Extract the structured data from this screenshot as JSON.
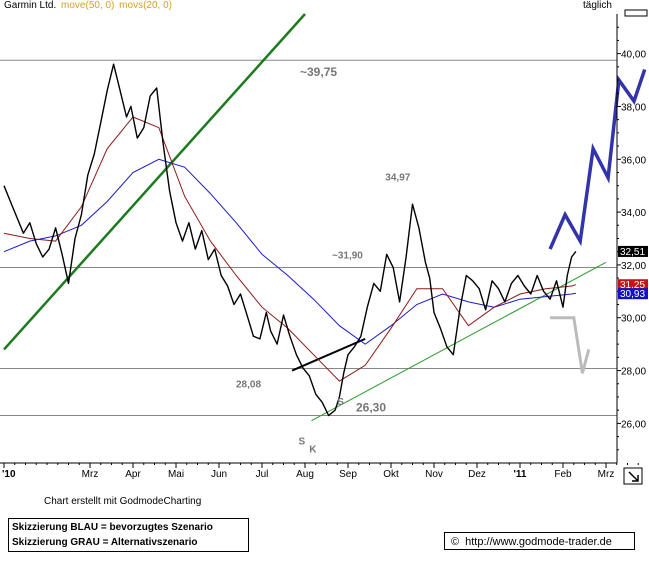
{
  "header": {
    "title": "Garmin Ltd.",
    "indicator_1": "move(50, 0)",
    "indicator_2": "movs(20, 0)",
    "timeframe": "täglich"
  },
  "footer": {
    "credit": "Chart erstellt mit GodmodeCharting",
    "legend_blue": "Skizzierung BLAU = bevorzugtes Szenario",
    "legend_grey": "Skizzierung GRAU = Alternativszenario",
    "copyright_symbol": "©",
    "url": "http://www.godmode-trader.de"
  },
  "colors": {
    "price": "#000000",
    "ma50": "#1a1acc",
    "ma20": "#8b1a1a",
    "trend_upper": "#1e7a1e",
    "trend_lower": "#2a9a2a",
    "scenario_blue": "#3333aa",
    "scenario_grey": "#bbbbbb",
    "horizontal_level": "#888888",
    "label_grey": "#777777",
    "badge_price": "#000000",
    "badge_ma20": "#cc1111",
    "badge_ma50": "#1111cc"
  },
  "chart_data": {
    "type": "line",
    "title": "Garmin Ltd.",
    "x_tick_labels": [
      "'10",
      "Mrz",
      "Apr",
      "Mai",
      "Jun",
      "Jul",
      "Aug",
      "Sep",
      "Okt",
      "Nov",
      "Dez",
      "'11",
      "Feb",
      "Mrz"
    ],
    "x_tick_months": [
      0,
      2,
      3,
      4,
      5,
      6,
      7,
      8,
      9,
      10,
      11,
      12,
      13,
      14
    ],
    "xlim": [
      0,
      14.9
    ],
    "y_ticks": [
      26,
      28,
      30,
      32,
      34,
      36,
      38,
      40
    ],
    "y_tick_labels": [
      "26,00",
      "28,00",
      "30,00",
      "32,00",
      "34,00",
      "36,00",
      "38,00",
      "40,00"
    ],
    "ylim": [
      24.5,
      41.5
    ],
    "y_axis_side": "right",
    "grid": false,
    "price_series": {
      "name": "Garmin Ltd.",
      "x": [
        0.0,
        0.15,
        0.3,
        0.45,
        0.6,
        0.75,
        0.9,
        1.05,
        1.2,
        1.35,
        1.5,
        1.65,
        1.8,
        1.95,
        2.1,
        2.25,
        2.4,
        2.55,
        2.7,
        2.85,
        2.95,
        3.1,
        3.25,
        3.4,
        3.55,
        3.7,
        3.85,
        4.0,
        4.15,
        4.3,
        4.45,
        4.6,
        4.75,
        4.9,
        5.05,
        5.2,
        5.35,
        5.5,
        5.65,
        5.8,
        5.95,
        6.1,
        6.2,
        6.35,
        6.5,
        6.65,
        6.8,
        6.95,
        7.1,
        7.25,
        7.4,
        7.55,
        7.7,
        7.8,
        7.9,
        8.0,
        8.15,
        8.3,
        8.45,
        8.6,
        8.75,
        8.9,
        9.05,
        9.2,
        9.35,
        9.5,
        9.65,
        9.8,
        9.9,
        10.0,
        10.15,
        10.3,
        10.45,
        10.6,
        10.75,
        10.9,
        11.05,
        11.2,
        11.35,
        11.5,
        11.65,
        11.8,
        11.95,
        12.1,
        12.25,
        12.4,
        12.55,
        12.7,
        12.85,
        13.0,
        13.1,
        13.2,
        13.3
      ],
      "y": [
        35.0,
        34.4,
        33.8,
        33.2,
        33.6,
        32.8,
        32.3,
        32.6,
        33.4,
        32.4,
        31.3,
        33.0,
        33.9,
        35.4,
        36.2,
        37.4,
        38.6,
        39.6,
        38.6,
        37.6,
        38.0,
        36.8,
        37.2,
        38.4,
        38.7,
        36.6,
        34.8,
        33.6,
        32.9,
        33.6,
        32.6,
        33.3,
        32.2,
        32.6,
        31.6,
        31.2,
        30.5,
        30.9,
        30.1,
        29.3,
        29.2,
        30.2,
        29.5,
        29.0,
        30.1,
        29.3,
        28.6,
        28.1,
        27.8,
        27.1,
        26.8,
        26.3,
        26.5,
        27.0,
        27.9,
        28.6,
        28.9,
        29.3,
        30.4,
        31.3,
        31.0,
        32.4,
        31.9,
        30.6,
        32.3,
        34.3,
        33.4,
        32.1,
        31.5,
        30.2,
        29.6,
        28.9,
        28.6,
        30.3,
        31.6,
        31.4,
        31.1,
        30.3,
        31.4,
        31.1,
        30.6,
        31.3,
        31.6,
        31.2,
        30.9,
        31.6,
        31.0,
        30.7,
        31.4,
        30.4,
        31.6,
        32.3,
        32.51
      ]
    },
    "ma20_series": {
      "name": "movs(20, 0)",
      "x": [
        0.0,
        0.6,
        1.2,
        1.8,
        2.4,
        3.0,
        3.6,
        4.2,
        4.8,
        5.4,
        6.0,
        6.6,
        7.2,
        7.8,
        8.4,
        9.0,
        9.6,
        10.2,
        10.8,
        11.4,
        12.0,
        12.6,
        13.2,
        13.3
      ],
      "y": [
        33.2,
        33.0,
        32.9,
        34.2,
        36.4,
        37.6,
        37.2,
        34.6,
        32.9,
        31.6,
        30.4,
        29.6,
        28.6,
        27.6,
        28.2,
        29.6,
        31.1,
        31.1,
        29.7,
        30.4,
        30.9,
        31.1,
        31.2,
        31.25
      ]
    },
    "ma50_series": {
      "name": "move(50, 0)",
      "x": [
        0.0,
        0.6,
        1.2,
        1.8,
        2.4,
        3.0,
        3.6,
        4.2,
        4.8,
        5.4,
        6.0,
        6.6,
        7.2,
        7.8,
        8.4,
        9.0,
        9.6,
        10.2,
        10.8,
        11.4,
        12.0,
        12.6,
        13.2,
        13.3
      ],
      "y": [
        32.5,
        32.9,
        33.1,
        33.5,
        34.4,
        35.5,
        36.0,
        35.7,
        34.7,
        33.6,
        32.4,
        31.6,
        30.7,
        29.7,
        29.0,
        29.7,
        30.5,
        30.9,
        30.6,
        30.4,
        30.7,
        30.8,
        30.9,
        30.93
      ]
    },
    "horizontal_levels": [
      {
        "value": 39.75,
        "label": "~39,75"
      },
      {
        "value": 31.9,
        "label": "~31,90"
      },
      {
        "value": 28.08,
        "label": "28,08"
      },
      {
        "value": 26.3,
        "label": "26,30"
      }
    ],
    "peak_label": {
      "x": 9.1,
      "y": 34.97,
      "label": "34,97"
    },
    "pattern_labels": [
      {
        "x": 6.85,
        "y": 25.2,
        "label": "S"
      },
      {
        "x": 7.1,
        "y": 24.9,
        "label": "K"
      },
      {
        "x": 7.75,
        "y": 26.7,
        "label": "S"
      }
    ],
    "neckline": {
      "x": [
        6.7,
        8.4
      ],
      "y": [
        28.0,
        29.2
      ]
    },
    "trendlines": [
      {
        "name": "upper",
        "x": [
          0.0,
          7.0
        ],
        "y": [
          28.8,
          41.5
        ]
      },
      {
        "name": "lower",
        "x": [
          7.15,
          14.0
        ],
        "y": [
          26.1,
          32.1
        ]
      }
    ],
    "scenario_blue": {
      "x": [
        12.7,
        13.05,
        13.4,
        13.7,
        14.05,
        14.3,
        14.65,
        14.9
      ],
      "y": [
        32.6,
        33.9,
        32.9,
        36.4,
        35.3,
        39.0,
        38.2,
        39.4
      ]
    },
    "scenario_grey": {
      "x": [
        12.7,
        13.25,
        13.45,
        13.6
      ],
      "y": [
        30.0,
        30.0,
        27.9,
        28.8
      ]
    },
    "value_badges": [
      {
        "value": 32.51,
        "label": "32,51",
        "color": "#000000"
      },
      {
        "value": 31.25,
        "label": "31,25",
        "color": "#cc1111"
      },
      {
        "value": 30.93,
        "label": "30,93",
        "color": "#1111cc"
      }
    ]
  }
}
